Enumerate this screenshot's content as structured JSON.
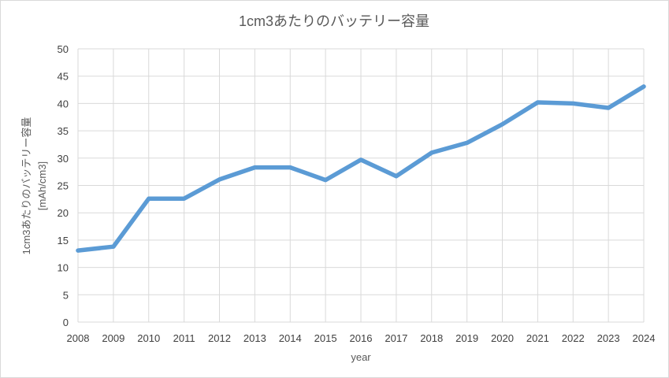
{
  "chart_data": {
    "type": "line",
    "title": "1cm3あたりのバッテリー容量",
    "xlabel": "year",
    "ylabel_line1": "1cm3あたりのバッテリー容量",
    "ylabel_line2": "[mAh/cm3]",
    "x": [
      "2008",
      "2009",
      "2010",
      "2011",
      "2012",
      "2013",
      "2014",
      "2015",
      "2016",
      "2017",
      "2018",
      "2019",
      "2020",
      "2021",
      "2022",
      "2023",
      "2024"
    ],
    "series": [
      {
        "values": [
          13.1,
          13.8,
          22.6,
          22.6,
          26.1,
          28.3,
          28.3,
          26.0,
          29.7,
          26.7,
          31.0,
          32.8,
          36.2,
          40.2,
          40.0,
          39.2,
          43.1
        ]
      }
    ],
    "ylim": [
      0,
      50
    ],
    "yticks": [
      0,
      5,
      10,
      15,
      20,
      25,
      30,
      35,
      40,
      45,
      50
    ],
    "grid": true,
    "legend": "none",
    "colors": {
      "line": "#5b9bd5",
      "grid": "#d9d9d9"
    }
  }
}
